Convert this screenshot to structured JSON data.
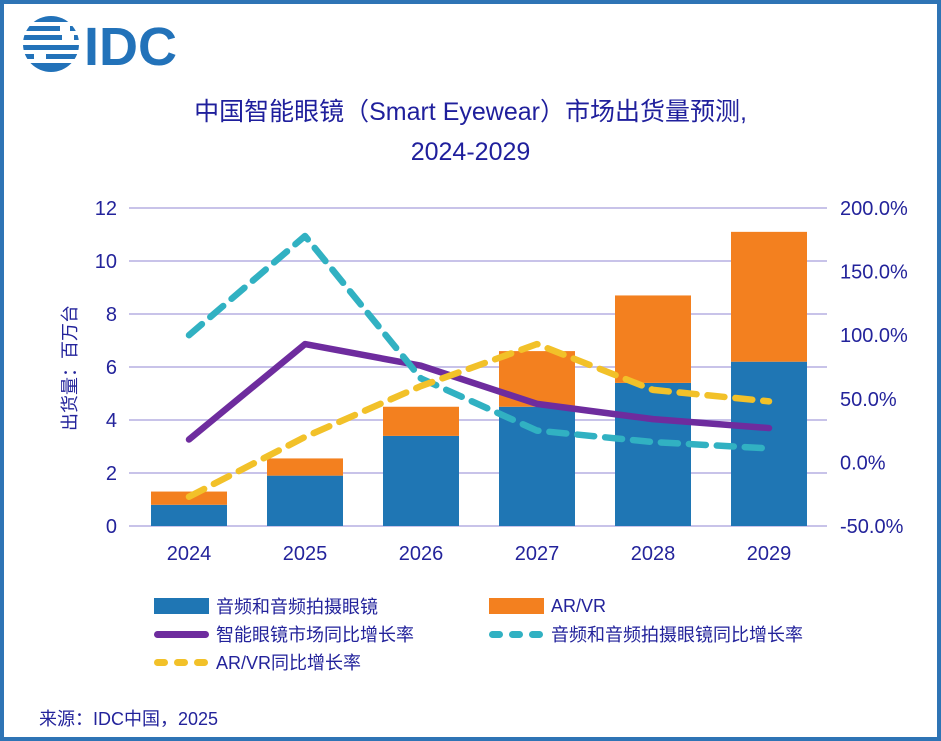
{
  "colors": {
    "navy_text": "#23239B",
    "title_text": "#1F1F9C",
    "bar_blue": "#1F76B4",
    "bar_orange": "#F3801F",
    "line_purple": "#6E2C9E",
    "line_teal": "#31B1C2",
    "line_yellow": "#F2C129",
    "gridline": "#C8C3E9",
    "frame_border": "#2E74B5",
    "logo_blue": "#2272B9",
    "background": "#FFFFFF"
  },
  "logo": {
    "text": "IDC"
  },
  "title": {
    "line1": "中国智能眼镜（Smart Eyewear）市场出货量预测,",
    "line2": "2024-2029"
  },
  "chart_data": {
    "type": "bar",
    "subtype": "stacked-bars-with-lines",
    "categories": [
      "2024",
      "2025",
      "2026",
      "2027",
      "2028",
      "2029"
    ],
    "bar_series": [
      {
        "name": "音频和音频拍摄眼镜",
        "color_key": "bar_blue",
        "axis": "left",
        "values": [
          0.8,
          1.9,
          3.4,
          4.5,
          5.4,
          6.2
        ]
      },
      {
        "name": "AR/VR",
        "color_key": "bar_orange",
        "axis": "left",
        "values": [
          0.5,
          0.65,
          1.1,
          2.1,
          3.3,
          4.9
        ]
      }
    ],
    "line_series": [
      {
        "name": "智能眼镜市场同比增长率",
        "color_key": "line_purple",
        "style": "solid",
        "axis": "right",
        "values": [
          18,
          93,
          76,
          46,
          34,
          27
        ]
      },
      {
        "name": "音频和音频拍摄眼镜同比增长率",
        "color_key": "line_teal",
        "style": "dashed",
        "axis": "right",
        "values": [
          100,
          178,
          66,
          25,
          16,
          11
        ]
      },
      {
        "name": "AR/VR同比增长率",
        "color_key": "line_yellow",
        "style": "dashed",
        "axis": "right",
        "values": [
          -27,
          20,
          60,
          93,
          57,
          48
        ]
      }
    ],
    "left_axis": {
      "label": "出货量：百万台",
      "min": 0,
      "max": 12,
      "tick_step": 2,
      "ticks": [
        "0",
        "2",
        "4",
        "6",
        "8",
        "10",
        "12"
      ]
    },
    "right_axis": {
      "label": "",
      "min": -50,
      "max": 200,
      "tick_step": 50,
      "ticks": [
        "-50.0%",
        "0.0%",
        "50.0%",
        "100.0%",
        "150.0%",
        "200.0%"
      ]
    },
    "grid": true,
    "stacked": true,
    "legend_position": "bottom"
  },
  "legend": {
    "items": [
      {
        "label": "音频和音频拍摄眼镜",
        "swatch": "bar",
        "color_key": "bar_blue"
      },
      {
        "label": "AR/VR",
        "swatch": "bar",
        "color_key": "bar_orange"
      },
      {
        "label": "智能眼镜市场同比增长率",
        "swatch": "line-solid",
        "color_key": "line_purple"
      },
      {
        "label": "音频和音频拍摄眼镜同比增长率",
        "swatch": "line-dashed",
        "color_key": "line_teal"
      },
      {
        "label": "AR/VR同比增长率",
        "swatch": "line-dashed",
        "color_key": "line_yellow"
      }
    ]
  },
  "source": {
    "text": "来源：IDC中国，2025"
  }
}
